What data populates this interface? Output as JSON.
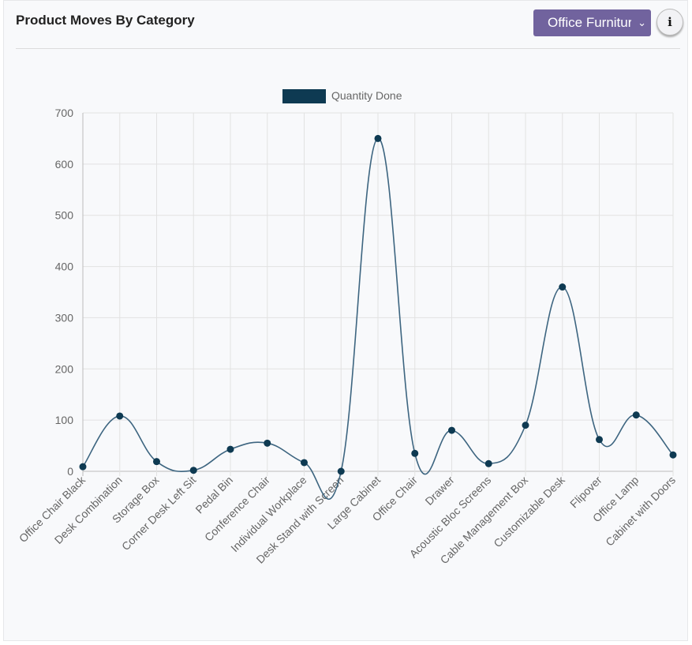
{
  "header": {
    "title": "Product Moves By Category",
    "category_select": "Office Furniture",
    "info_icon": "info-icon"
  },
  "colors": {
    "line": "#3d6580",
    "point": "#0e3a52",
    "legend": "#0e3a52",
    "select_bg": "#71639e"
  },
  "chart_data": {
    "type": "line",
    "legend": [
      {
        "name": "Quantity Done"
      }
    ],
    "legend_position": "top",
    "categories": [
      "Office Chair Black",
      "Desk Combination",
      "Storage Box",
      "Corner Desk Left Sit",
      "Pedal Bin",
      "Conference Chair",
      "Individual Workplace",
      "Desk Stand with Screen",
      "Large Cabinet",
      "Office Chair",
      "Drawer",
      "Acoustic Bloc Screens",
      "Cable Management Box",
      "Customizable Desk",
      "Flipover",
      "Office Lamp",
      "Cabinet with Doors"
    ],
    "series": [
      {
        "name": "Quantity Done",
        "values": [
          9,
          108,
          19,
          2,
          43,
          55,
          17,
          0,
          650,
          35,
          80,
          15,
          90,
          360,
          62,
          110,
          32
        ]
      }
    ],
    "ylim": [
      0,
      700
    ],
    "yticks": [
      0,
      100,
      200,
      300,
      400,
      500,
      600,
      700
    ],
    "grid": true,
    "smooth": true
  }
}
